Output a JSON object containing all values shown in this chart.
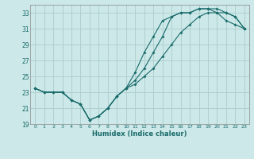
{
  "xlabel": "Humidex (Indice chaleur)",
  "ylabel": "",
  "bg_color": "#cce8e8",
  "grid_color": "#b0d0d0",
  "line_color": "#1a6b6b",
  "xlim": [
    -0.5,
    23.5
  ],
  "ylim": [
    19,
    34
  ],
  "yticks": [
    19,
    21,
    23,
    25,
    27,
    29,
    31,
    33
  ],
  "xticks": [
    0,
    1,
    2,
    3,
    4,
    5,
    6,
    7,
    8,
    9,
    10,
    11,
    12,
    13,
    14,
    15,
    16,
    17,
    18,
    19,
    20,
    21,
    22,
    23
  ],
  "series1_x": [
    0,
    1,
    2,
    3,
    4,
    5,
    6,
    7,
    8,
    9,
    10,
    11,
    12,
    13,
    14,
    15,
    16,
    17,
    18,
    19,
    20,
    21,
    22,
    23
  ],
  "series1_y": [
    23.5,
    23.0,
    23.0,
    23.0,
    22.0,
    21.5,
    19.5,
    20.0,
    21.0,
    22.5,
    23.5,
    24.5,
    26.0,
    28.0,
    30.0,
    32.5,
    33.0,
    33.0,
    33.5,
    33.5,
    33.5,
    33.0,
    32.5,
    31.0
  ],
  "series2_x": [
    0,
    1,
    2,
    3,
    4,
    5,
    6,
    7,
    8,
    9,
    10,
    11,
    12,
    13,
    14,
    15,
    16,
    17,
    18,
    19,
    20,
    21,
    22,
    23
  ],
  "series2_y": [
    23.5,
    23.0,
    23.0,
    23.0,
    22.0,
    21.5,
    19.5,
    20.0,
    21.0,
    22.5,
    23.5,
    25.5,
    28.0,
    30.0,
    32.0,
    32.5,
    33.0,
    33.0,
    33.5,
    33.5,
    33.0,
    32.0,
    31.5,
    31.0
  ],
  "series3_x": [
    0,
    1,
    2,
    3,
    4,
    5,
    6,
    7,
    8,
    9,
    10,
    11,
    12,
    13,
    14,
    15,
    16,
    17,
    18,
    19,
    20,
    21,
    22,
    23
  ],
  "series3_y": [
    23.5,
    23.0,
    23.0,
    23.0,
    22.0,
    21.5,
    19.5,
    20.0,
    21.0,
    22.5,
    23.5,
    24.0,
    25.0,
    26.0,
    27.5,
    29.0,
    30.5,
    31.5,
    32.5,
    33.0,
    33.0,
    33.0,
    32.5,
    31.0
  ]
}
